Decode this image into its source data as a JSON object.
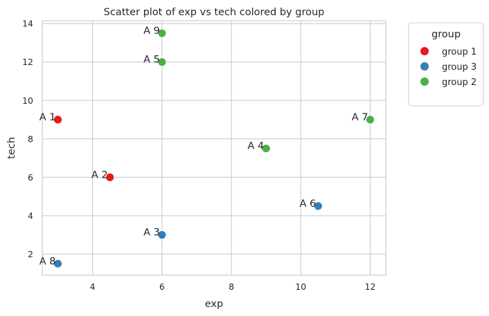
{
  "chart_data": {
    "type": "scatter",
    "title": "Scatter plot of exp vs tech colored by group",
    "xlabel": "exp",
    "ylabel": "tech",
    "xlim": [
      2.55,
      12.45
    ],
    "ylim": [
      0.9,
      14.15
    ],
    "xticks": [
      4,
      6,
      8,
      10,
      12
    ],
    "yticks": [
      2,
      4,
      6,
      8,
      10,
      12,
      14
    ],
    "grid": true,
    "legend": {
      "title": "group",
      "placement": "outside-top-right",
      "entries": [
        {
          "name": "group 1",
          "color": "#e41a1c"
        },
        {
          "name": "group 3",
          "color": "#377eb8"
        },
        {
          "name": "group 2",
          "color": "#4daf4a"
        }
      ]
    },
    "series": [
      {
        "name": "group 1",
        "color": "#e41a1c",
        "points": [
          {
            "label": "A 1",
            "x": 3,
            "y": 9
          },
          {
            "label": "A 2",
            "x": 4.5,
            "y": 6
          }
        ]
      },
      {
        "name": "group 3",
        "color": "#377eb8",
        "points": [
          {
            "label": "A 3",
            "x": 6,
            "y": 3
          },
          {
            "label": "A 6",
            "x": 10.5,
            "y": 4.5
          },
          {
            "label": "A 8",
            "x": 3,
            "y": 1.5
          }
        ]
      },
      {
        "name": "group 2",
        "color": "#4daf4a",
        "points": [
          {
            "label": "A 4",
            "x": 9,
            "y": 7.5
          },
          {
            "label": "A 5",
            "x": 6,
            "y": 12
          },
          {
            "label": "A 7",
            "x": 12,
            "y": 9
          },
          {
            "label": "A 9",
            "x": 6,
            "y": 13.5
          }
        ]
      }
    ]
  }
}
